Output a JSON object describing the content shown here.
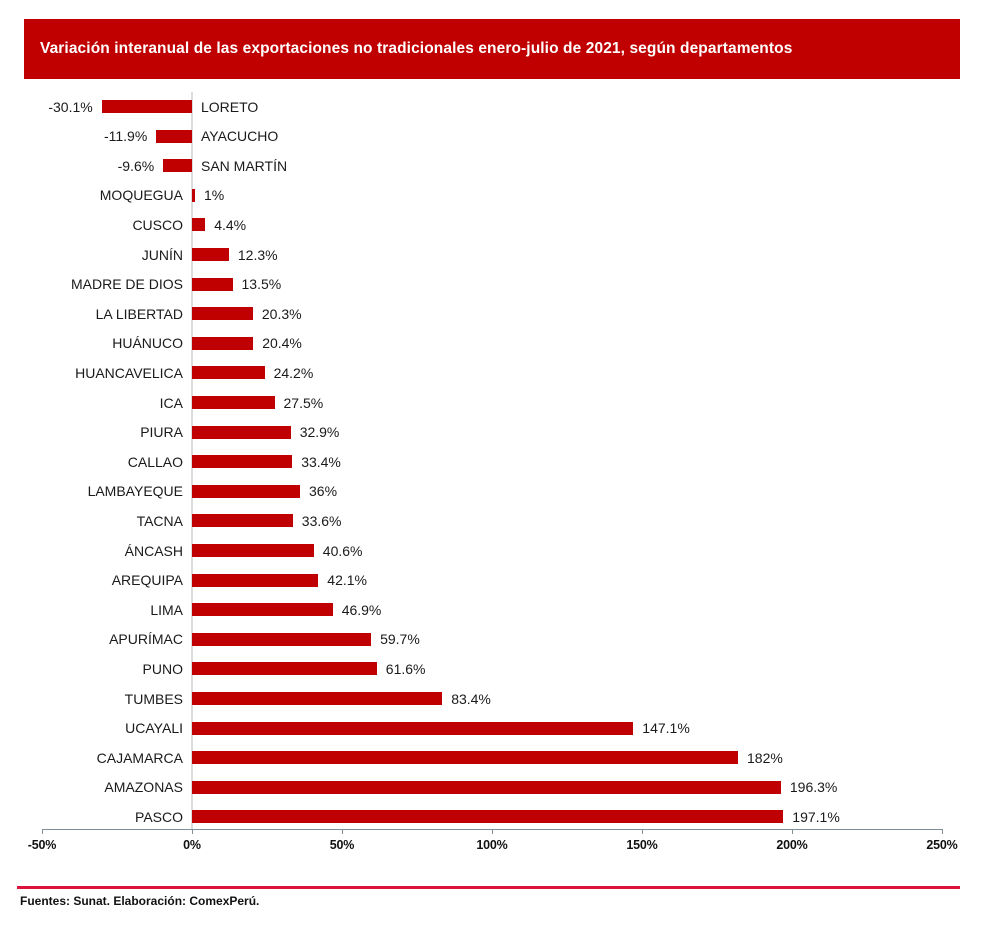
{
  "title": {
    "text": "Variación interanual de las exportaciones no tradicionales enero-julio de 2021, según departamentos"
  },
  "colors": {
    "bar": "#C00000",
    "title_bg": "#C00000",
    "title_text": "#FFFFFF",
    "axis": "#7E8F99",
    "gridline": "#D9DDDD",
    "footer_line": "#DC143C",
    "label": "#1A1A1A"
  },
  "footer": {
    "source": "Fuentes: Sunat. Elaboración: ComexPerú."
  },
  "chart_data": {
    "type": "bar",
    "orientation": "horizontal",
    "title": "Variación interanual de las exportaciones no tradicionales enero-julio de 2021, según departamentos",
    "xlabel": "",
    "ylabel": "",
    "xlim": [
      -50,
      250
    ],
    "grid": "zero-line-only",
    "legend": "none",
    "categories": [
      "LORETO",
      "AYACUCHO",
      "SAN MARTÍN",
      "MOQUEGUA",
      "CUSCO",
      "JUNÍN",
      "MADRE DE DIOS",
      "LA LIBERTAD",
      "HUÁNUCO",
      "HUANCAVELICA",
      "ICA",
      "PIURA",
      "CALLAO",
      "LAMBAYEQUE",
      "TACNA",
      "ÁNCASH",
      "AREQUIPA",
      "LIMA",
      "APURÍMAC",
      "PUNO",
      "TUMBES",
      "UCAYALI",
      "CAJAMARCA",
      "AMAZONAS",
      "PASCO"
    ],
    "values": [
      -30.1,
      -11.9,
      -9.6,
      1,
      4.4,
      12.3,
      13.5,
      20.3,
      20.4,
      24.2,
      27.5,
      32.9,
      33.4,
      36,
      33.6,
      40.6,
      42.1,
      46.9,
      59.7,
      61.6,
      83.4,
      147.1,
      182,
      196.3,
      197.1
    ],
    "value_labels": [
      "-30.1%",
      "-11.9%",
      "-9.6%",
      "1%",
      "4.4%",
      "12.3%",
      "13.5%",
      "20.3%",
      "20.4%",
      "24.2%",
      "27.5%",
      "32.9%",
      "33.4%",
      "36%",
      "33.6%",
      "40.6%",
      "42.1%",
      "46.9%",
      "59.7%",
      "61.6%",
      "83.4%",
      "147.1%",
      "182%",
      "196.3%",
      "197.1%"
    ],
    "x_axis": {
      "tick_labels": [
        "-50%",
        "0%",
        "50%",
        "100%",
        "150%",
        "200%",
        "250%"
      ],
      "tick_values": [
        -50,
        0,
        50,
        100,
        150,
        200,
        250
      ]
    }
  }
}
